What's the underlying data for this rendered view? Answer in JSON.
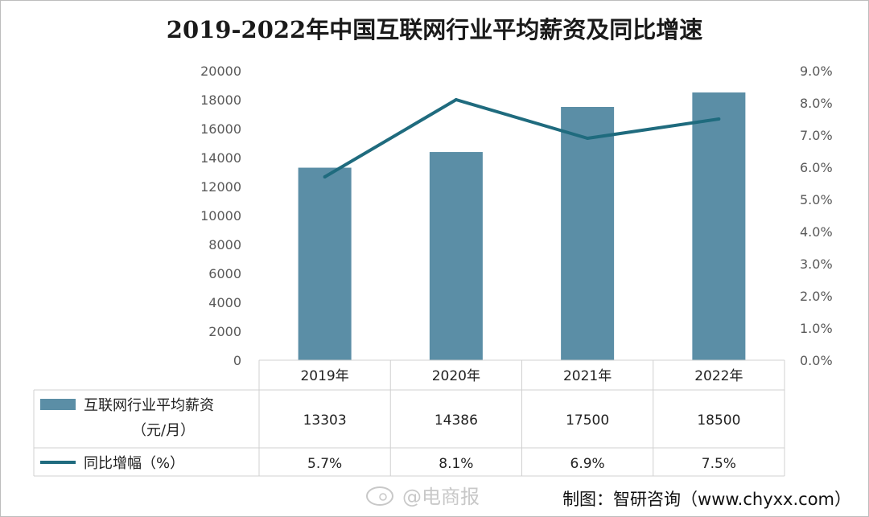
{
  "chart_data": {
    "type": "bar",
    "title": "2019-2022年中国互联网行业平均薪资及同比增速",
    "categories": [
      "2019年",
      "2020年",
      "2021年",
      "2022年"
    ],
    "series": [
      {
        "name": "互联网行业平均薪资（元/月）",
        "name_lines": [
          "互联网行业平均薪资",
          "（元/月）"
        ],
        "type": "bar",
        "axis": "left",
        "values": [
          13303,
          14386,
          17500,
          18500
        ],
        "value_labels": [
          "13303",
          "14386",
          "17500",
          "18500"
        ],
        "color": "#5b8ea6"
      },
      {
        "name": "同比增幅（%）",
        "type": "line",
        "axis": "right",
        "values": [
          5.7,
          8.1,
          6.9,
          7.5
        ],
        "value_labels": [
          "5.7%",
          "8.1%",
          "6.9%",
          "7.5%"
        ],
        "color": "#1f6b7e"
      }
    ],
    "left_axis": {
      "min": 0,
      "max": 20000,
      "step": 2000,
      "ticks": [
        "0",
        "2000",
        "4000",
        "6000",
        "8000",
        "10000",
        "12000",
        "14000",
        "16000",
        "18000",
        "20000"
      ]
    },
    "right_axis": {
      "min": 0,
      "max": 9,
      "step": 1,
      "ticks": [
        "0.0%",
        "1.0%",
        "2.0%",
        "3.0%",
        "4.0%",
        "5.0%",
        "6.0%",
        "7.0%",
        "8.0%",
        "9.0%"
      ]
    },
    "grid": false,
    "legend": "data-table"
  },
  "footer": {
    "watermark": "@电商报",
    "source": "制图：智研咨询（www.chyxx.com）"
  }
}
